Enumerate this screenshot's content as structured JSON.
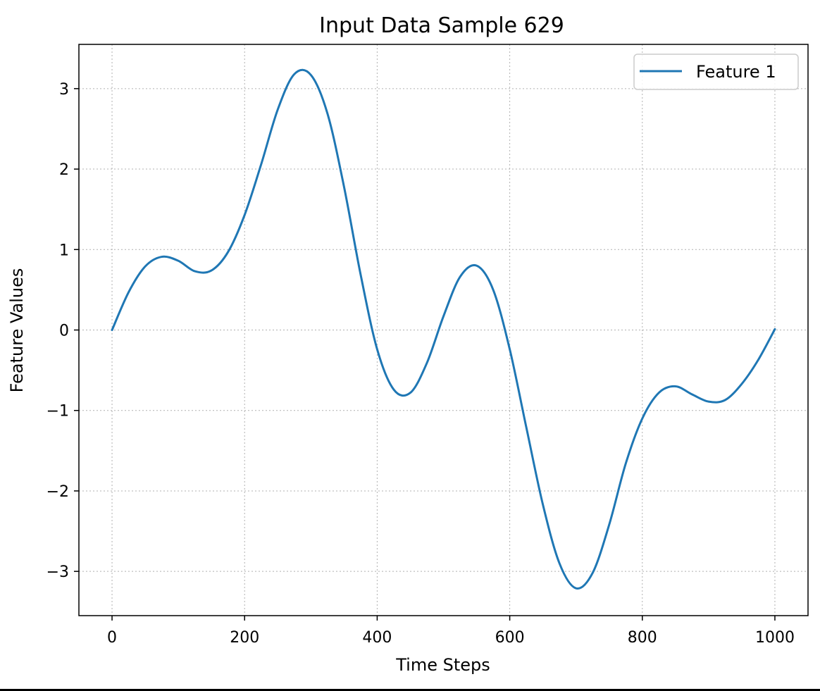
{
  "chart_data": {
    "type": "line",
    "title": "Input Data Sample 629",
    "xlabel": "Time Steps",
    "ylabel": "Feature Values",
    "xlim": [
      -50,
      1050
    ],
    "ylim": [
      -3.55,
      3.55
    ],
    "xticks": [
      0,
      200,
      400,
      600,
      800,
      1000
    ],
    "yticks": [
      -3,
      -2,
      -1,
      0,
      1,
      2,
      3
    ],
    "xtick_labels": [
      "0",
      "200",
      "400",
      "600",
      "800",
      "1000"
    ],
    "ytick_labels": [
      "−3",
      "−2",
      "−1",
      "0",
      "1",
      "2",
      "3"
    ],
    "grid": true,
    "legend_position": "top-right",
    "series": [
      {
        "name": "Feature 1",
        "color": "#1f77b4",
        "x": [
          0,
          25,
          50,
          75,
          100,
          125,
          150,
          175,
          200,
          225,
          250,
          275,
          300,
          325,
          350,
          375,
          400,
          425,
          450,
          475,
          500,
          525,
          550,
          575,
          600,
          625,
          650,
          675,
          700,
          725,
          750,
          775,
          800,
          825,
          850,
          875,
          900,
          925,
          950,
          975,
          1000
        ],
        "y": [
          0.0,
          0.47,
          0.79,
          0.91,
          0.86,
          0.73,
          0.74,
          0.97,
          1.43,
          2.06,
          2.74,
          3.18,
          3.17,
          2.69,
          1.78,
          0.69,
          -0.24,
          -0.74,
          -0.78,
          -0.41,
          0.17,
          0.66,
          0.8,
          0.5,
          -0.24,
          -1.21,
          -2.17,
          -2.9,
          -3.21,
          -3.02,
          -2.42,
          -1.66,
          -1.1,
          -0.78,
          -0.7,
          -0.8,
          -0.89,
          -0.87,
          -0.67,
          -0.37,
          0.01
        ]
      }
    ]
  }
}
